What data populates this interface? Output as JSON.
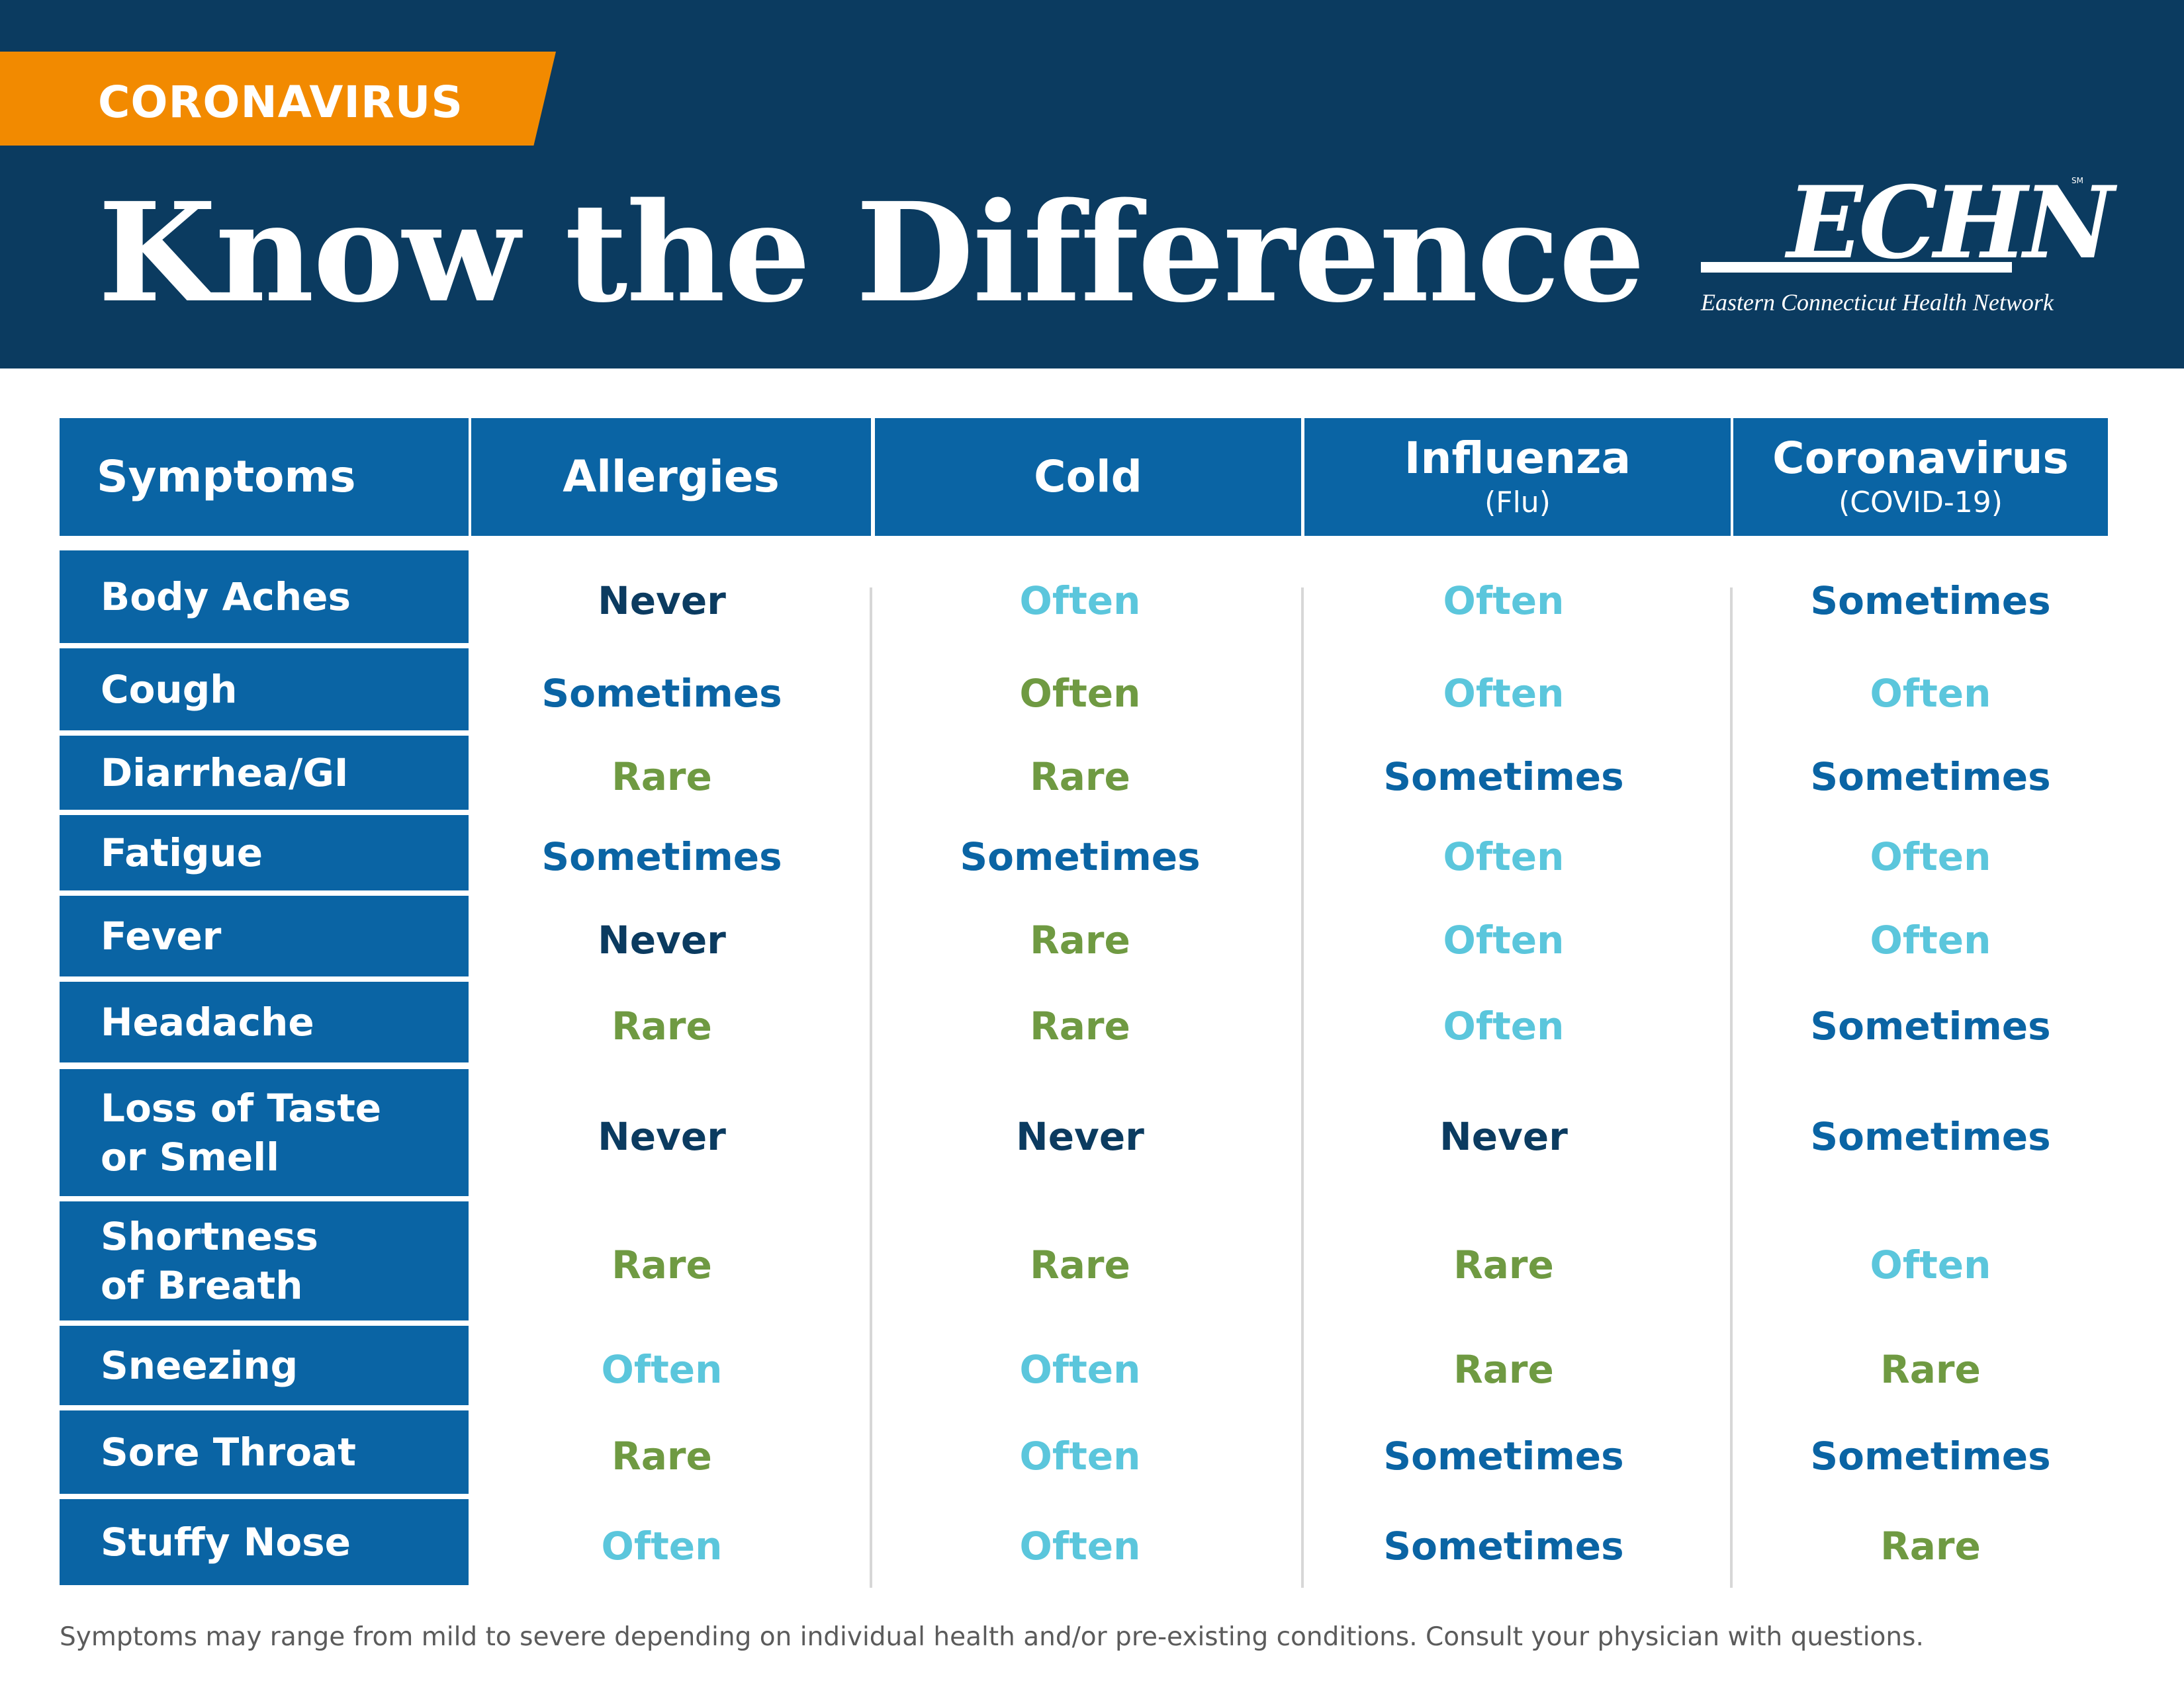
{
  "header": {
    "tag": "CORONAVIRUS",
    "title": "Know the Difference",
    "logo": {
      "mark": "ECHN",
      "tagline": "Eastern Connecticut Health Network",
      "service_mark": "SM"
    }
  },
  "table": {
    "columns": [
      {
        "label": "Symptoms",
        "sub": ""
      },
      {
        "label": "Allergies",
        "sub": ""
      },
      {
        "label": "Cold",
        "sub": ""
      },
      {
        "label": "Influenza",
        "sub": "(Flu)"
      },
      {
        "label": "Coronavirus",
        "sub": "(COVID-19)"
      }
    ],
    "rows": [
      {
        "symptom": "Body Aches",
        "values": [
          "Never",
          "Often",
          "Often",
          "Sometimes"
        ]
      },
      {
        "symptom": "Cough",
        "values": [
          "Sometimes",
          "Often",
          "Often",
          "Often"
        ]
      },
      {
        "symptom": "Diarrhea/GI",
        "values": [
          "Rare",
          "Rare",
          "Sometimes",
          "Sometimes"
        ]
      },
      {
        "symptom": "Fatigue",
        "values": [
          "Sometimes",
          "Sometimes",
          "Often",
          "Often"
        ]
      },
      {
        "symptom": "Fever",
        "values": [
          "Never",
          "Rare",
          "Often",
          "Often"
        ]
      },
      {
        "symptom": "Headache",
        "values": [
          "Rare",
          "Rare",
          "Often",
          "Sometimes"
        ]
      },
      {
        "symptom": "Loss of Taste\nor Smell",
        "values": [
          "Never",
          "Never",
          "Never",
          "Sometimes"
        ]
      },
      {
        "symptom": "Shortness\nof Breath",
        "values": [
          "Rare",
          "Rare",
          "Rare",
          "Often"
        ]
      },
      {
        "symptom": "Sneezing",
        "values": [
          "Often",
          "Often",
          "Rare",
          "Rare"
        ]
      },
      {
        "symptom": "Sore Throat",
        "values": [
          "Rare",
          "Often",
          "Sometimes",
          "Sometimes"
        ]
      },
      {
        "symptom": "Stuffy Nose",
        "values": [
          "Often",
          "Often",
          "Sometimes",
          "Rare"
        ]
      }
    ]
  },
  "value_colors": {
    "Never": "#0b3b60",
    "Often": "#5bc6dc",
    "Sometimes": "#0a64a4",
    "Rare": "#6f9a42"
  },
  "colors": {
    "header_bg": "#0b3b60",
    "tag_bg": "#f28a00",
    "table_header_bg": "#0a64a4",
    "cough_cold_override": "#6f9a42"
  },
  "footnote": "Symptoms may range from mild to severe depending on individual health and/or pre-existing conditions. Consult your physician with questions."
}
